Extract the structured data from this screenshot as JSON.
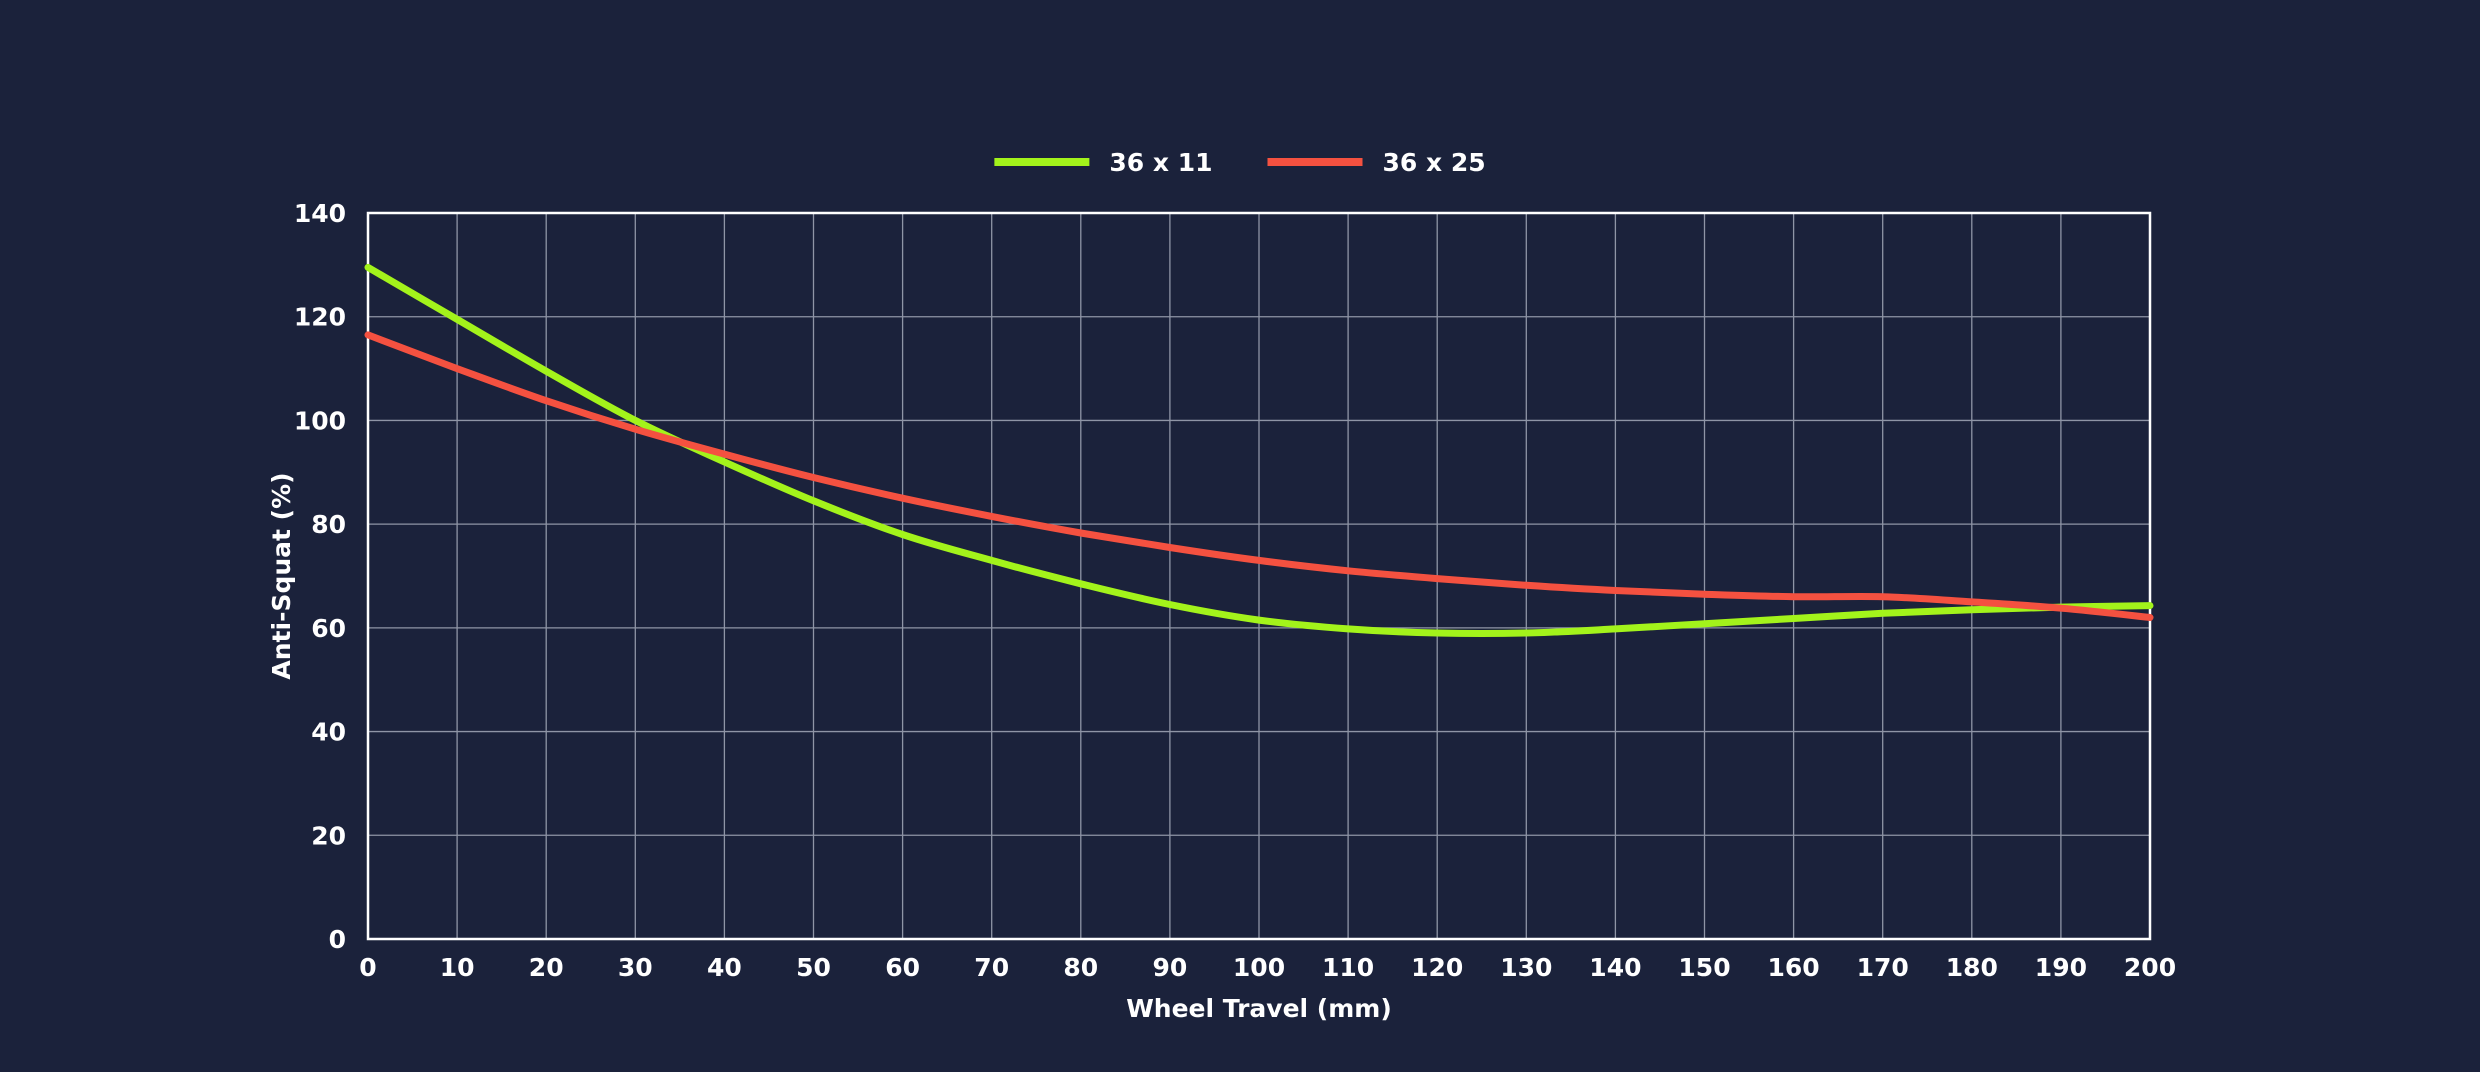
{
  "chart_data": {
    "type": "line",
    "xlabel": "Wheel Travel (mm)",
    "ylabel": "Anti-Squat (%)",
    "xlim": [
      0,
      200
    ],
    "ylim": [
      0,
      140
    ],
    "x_ticks": [
      0,
      10,
      20,
      30,
      40,
      50,
      60,
      70,
      80,
      90,
      100,
      110,
      120,
      130,
      140,
      150,
      160,
      170,
      180,
      190,
      200
    ],
    "y_ticks": [
      0,
      20,
      40,
      60,
      80,
      100,
      120,
      140
    ],
    "grid": true,
    "legend_position": "top-center",
    "x": [
      0,
      10,
      20,
      30,
      40,
      50,
      60,
      70,
      80,
      90,
      100,
      110,
      120,
      130,
      140,
      150,
      160,
      170,
      180,
      190,
      200
    ],
    "series": [
      {
        "name": "36 x 11",
        "color": "#a3f31b",
        "values": [
          129.5,
          119.5,
          109.5,
          100,
          92,
          84.5,
          78,
          73,
          68.5,
          64.5,
          61.5,
          59.8,
          59,
          59,
          59.8,
          60.8,
          61.8,
          62.8,
          63.5,
          64,
          64.3
        ]
      },
      {
        "name": "36 x 25",
        "color": "#f45140",
        "values": [
          116.5,
          110,
          103.8,
          98.3,
          93.5,
          89,
          85,
          81.5,
          78.3,
          75.5,
          73,
          71,
          69.5,
          68.2,
          67.2,
          66.5,
          66,
          66,
          65,
          63.8,
          62
        ]
      }
    ]
  }
}
